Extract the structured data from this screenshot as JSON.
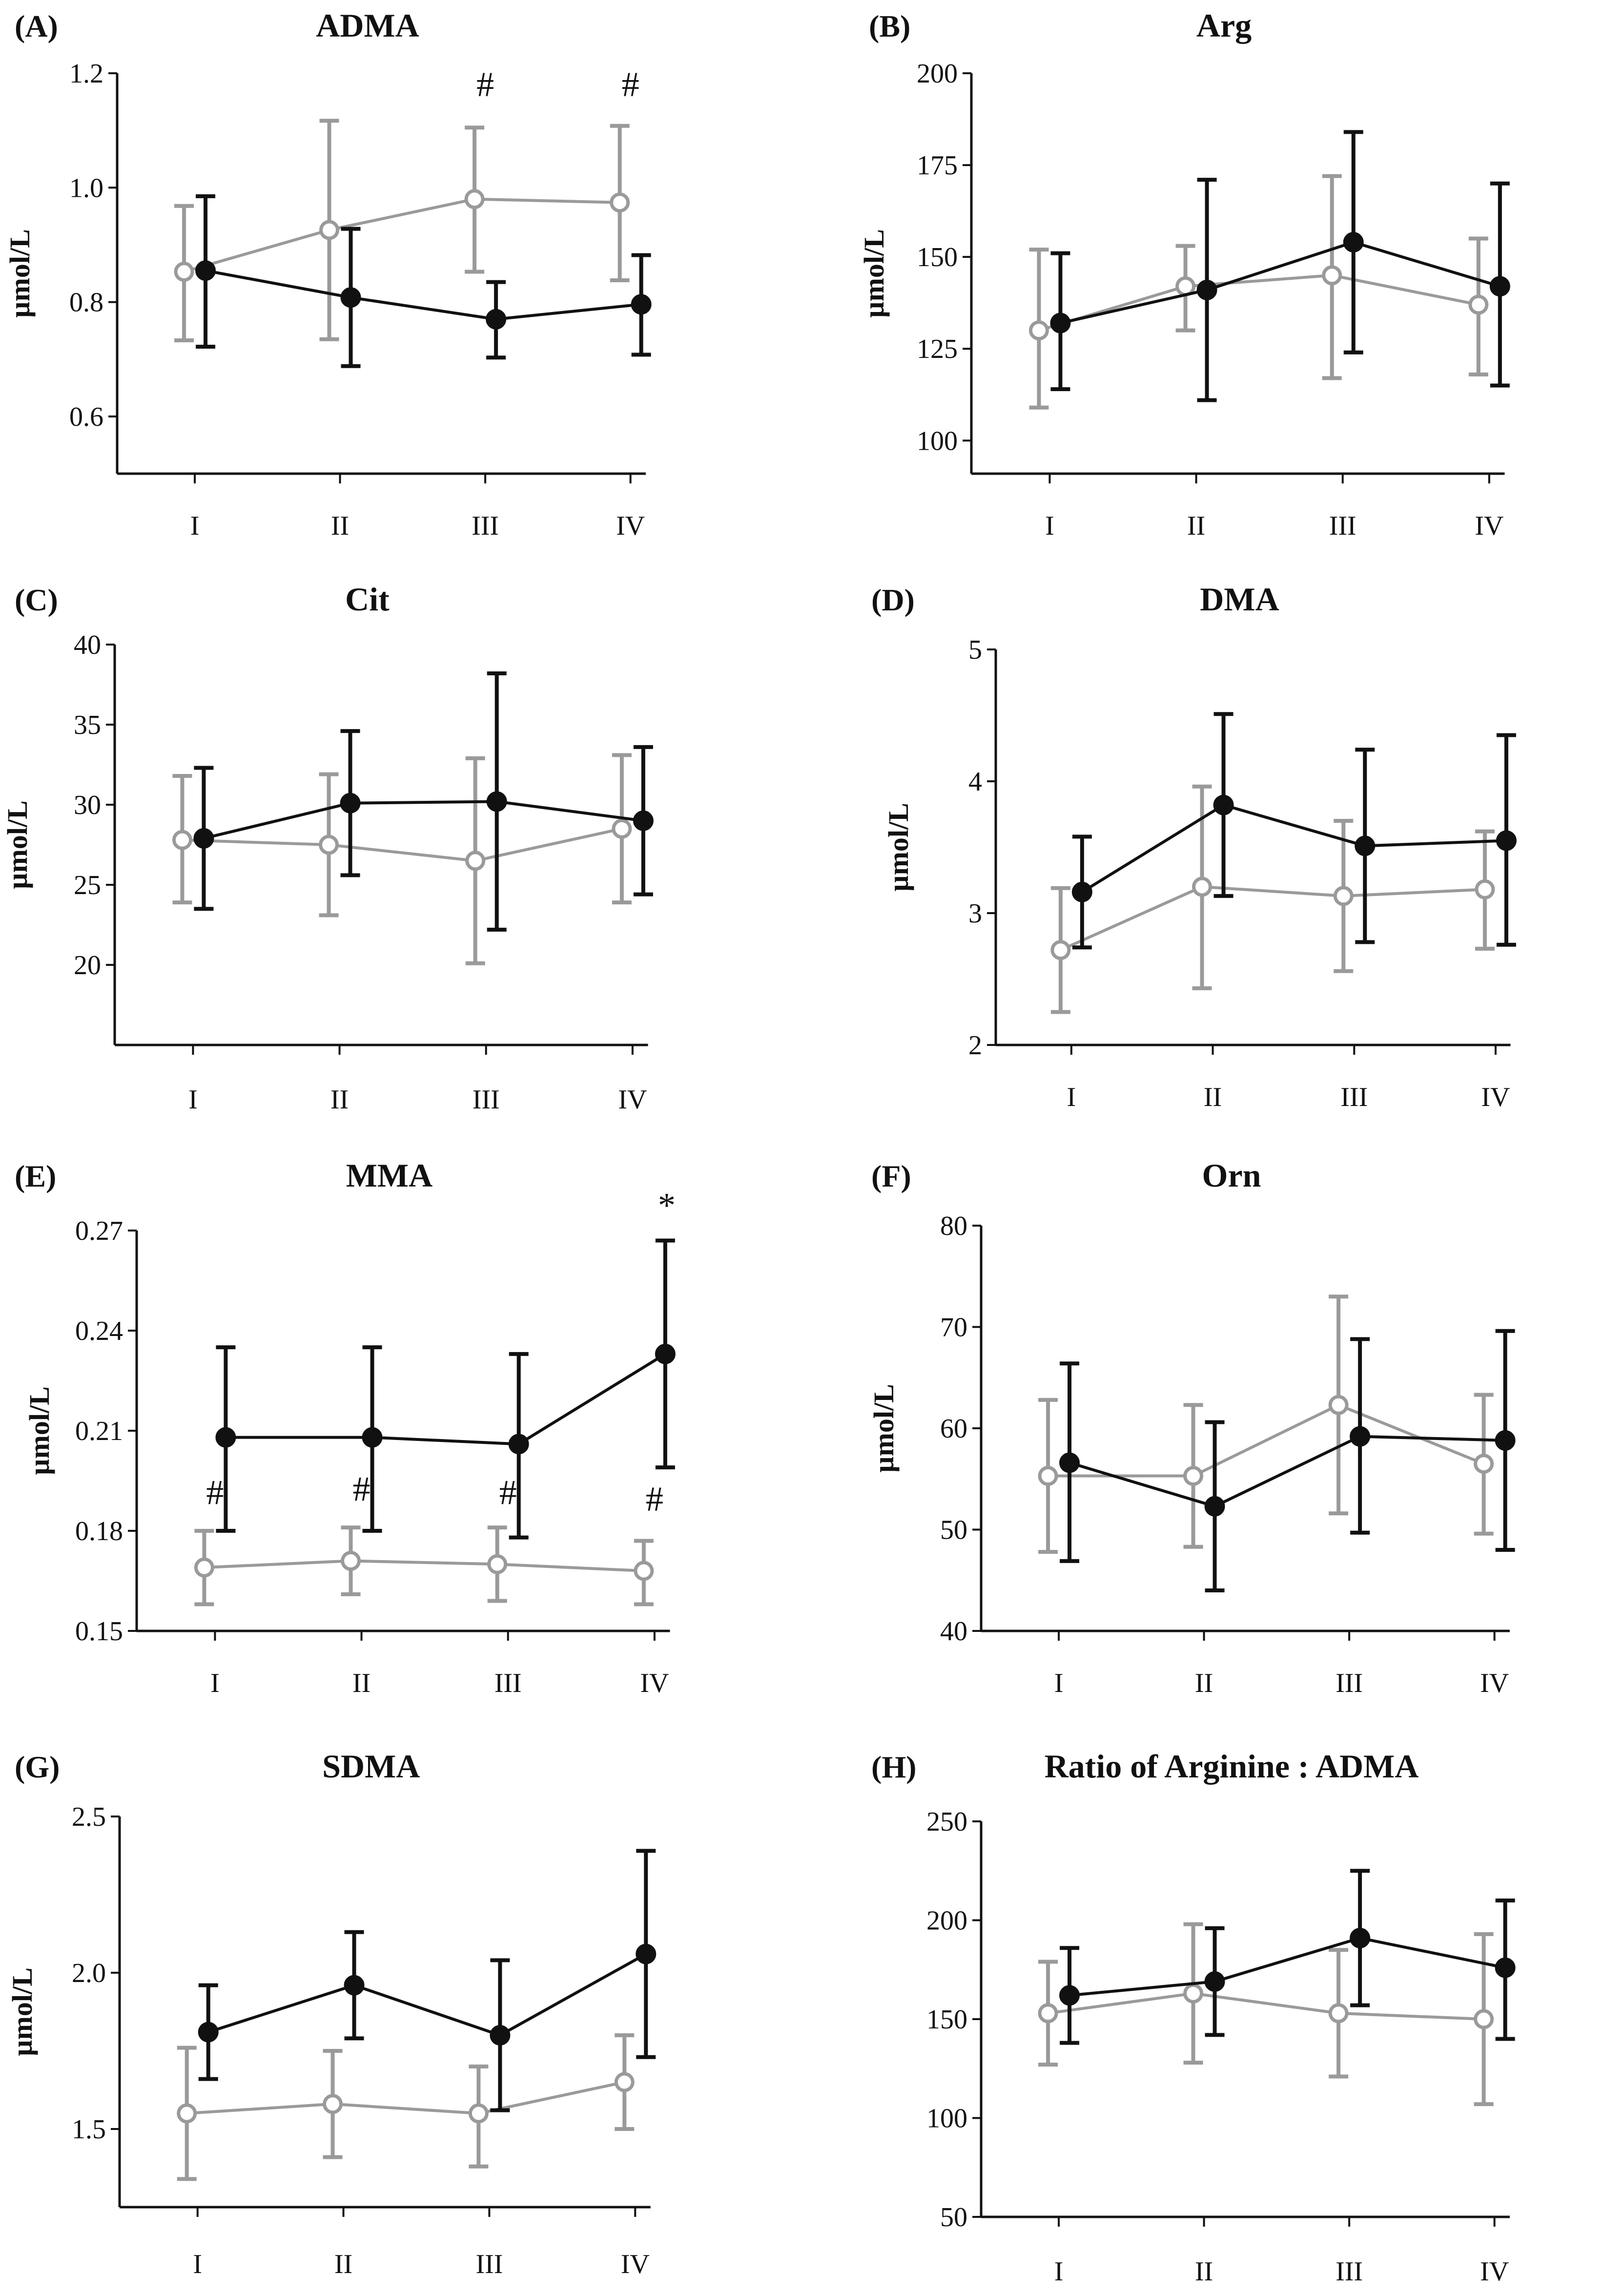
{
  "figure": {
    "group_colors": {
      "black": "#111111",
      "gray": "#9a9a9a"
    },
    "x_categories": [
      "I",
      "II",
      "III",
      "IV"
    ]
  },
  "chart_data": [
    {
      "type": "line",
      "panel_label": "(A)",
      "title": "ADMA",
      "ylabel": "µmol/L",
      "ylim": [
        0.5,
        1.2
      ],
      "yticks": [
        {
          "value": 0.6,
          "label": "0.6"
        },
        {
          "value": 0.8,
          "label": "0.8"
        },
        {
          "value": 1.0,
          "label": "1.0"
        },
        {
          "value": 1.2,
          "label": "1.2"
        }
      ],
      "categories": [
        "I",
        "II",
        "III",
        "IV"
      ],
      "series": [
        {
          "name": "black",
          "color": "#111111",
          "values": [
            0.855,
            0.808,
            0.77,
            0.796
          ],
          "err_low": [
            0.722,
            0.688,
            0.703,
            0.708
          ],
          "err_high": [
            0.985,
            0.928,
            0.835,
            0.882
          ]
        },
        {
          "name": "gray",
          "color": "#9a9a9a",
          "values": [
            0.853,
            0.926,
            0.98,
            0.974
          ],
          "err_low": [
            0.733,
            0.735,
            0.853,
            0.838
          ],
          "err_high": [
            0.968,
            1.117,
            1.105,
            1.108
          ]
        }
      ],
      "annotations": [
        {
          "category": "III",
          "text": "#",
          "y": 1.16
        },
        {
          "category": "IV",
          "text": "#",
          "y": 1.16
        }
      ]
    },
    {
      "type": "line",
      "panel_label": "(B)",
      "title": "Arg",
      "ylabel": "µmol/L",
      "ylim": [
        91,
        200
      ],
      "yticks": [
        {
          "value": 100,
          "label": "100"
        },
        {
          "value": 125,
          "label": "125"
        },
        {
          "value": 150,
          "label": "150"
        },
        {
          "value": 175,
          "label": "175"
        },
        {
          "value": 200,
          "label": "200"
        }
      ],
      "categories": [
        "I",
        "II",
        "III",
        "IV"
      ],
      "series": [
        {
          "name": "black",
          "color": "#111111",
          "values": [
            132,
            141,
            154,
            142
          ],
          "err_low": [
            114,
            111,
            124,
            115
          ],
          "err_high": [
            151,
            171,
            184,
            170
          ]
        },
        {
          "name": "gray",
          "color": "#9a9a9a",
          "values": [
            130,
            142,
            145,
            137
          ],
          "err_low": [
            109,
            130,
            117,
            118
          ],
          "err_high": [
            152,
            153,
            172,
            155
          ]
        }
      ],
      "annotations": []
    },
    {
      "type": "line",
      "panel_label": "(C)",
      "title": "Cit",
      "ylabel": "µmol/L",
      "ylim": [
        15,
        40
      ],
      "yticks": [
        {
          "value": 20,
          "label": "20"
        },
        {
          "value": 25,
          "label": "25"
        },
        {
          "value": 30,
          "label": "30"
        },
        {
          "value": 35,
          "label": "35"
        },
        {
          "value": 40,
          "label": "40"
        }
      ],
      "categories": [
        "I",
        "II",
        "III",
        "IV"
      ],
      "series": [
        {
          "name": "black",
          "color": "#111111",
          "values": [
            27.9,
            30.1,
            30.2,
            29.0
          ],
          "err_low": [
            23.5,
            25.6,
            22.2,
            24.4
          ],
          "err_high": [
            32.3,
            34.6,
            38.2,
            33.6
          ]
        },
        {
          "name": "gray",
          "color": "#9a9a9a",
          "values": [
            27.8,
            27.5,
            26.5,
            28.5
          ],
          "err_low": [
            23.9,
            23.1,
            20.1,
            23.9
          ],
          "err_high": [
            31.8,
            31.9,
            32.9,
            33.1
          ]
        }
      ],
      "annotations": []
    },
    {
      "type": "line",
      "panel_label": "(D)",
      "title": "DMA",
      "ylabel": "µmol/L",
      "ylim": [
        2,
        5
      ],
      "yticks": [
        {
          "value": 2,
          "label": "2"
        },
        {
          "value": 3,
          "label": "3"
        },
        {
          "value": 4,
          "label": "4"
        },
        {
          "value": 5,
          "label": "5"
        }
      ],
      "categories": [
        "I",
        "II",
        "III",
        "IV"
      ],
      "series": [
        {
          "name": "black",
          "color": "#111111",
          "values": [
            3.16,
            3.82,
            3.51,
            3.55
          ],
          "err_low": [
            2.74,
            3.13,
            2.78,
            2.76
          ],
          "err_high": [
            3.58,
            4.51,
            4.24,
            4.35
          ]
        },
        {
          "name": "gray",
          "color": "#9a9a9a",
          "values": [
            2.72,
            3.2,
            3.13,
            3.18
          ],
          "err_low": [
            2.25,
            2.43,
            2.56,
            2.73
          ],
          "err_high": [
            3.19,
            3.96,
            3.7,
            3.62
          ]
        }
      ],
      "annotations": []
    },
    {
      "type": "line",
      "panel_label": "(E)",
      "title": "MMA",
      "ylabel": "µmol/L",
      "ylim": [
        0.15,
        0.27
      ],
      "yticks": [
        {
          "value": 0.15,
          "label": "0.15"
        },
        {
          "value": 0.18,
          "label": "0.18"
        },
        {
          "value": 0.21,
          "label": "0.21"
        },
        {
          "value": 0.24,
          "label": "0.24"
        },
        {
          "value": 0.27,
          "label": "0.27"
        }
      ],
      "categories": [
        "I",
        "II",
        "III",
        "IV"
      ],
      "series": [
        {
          "name": "black",
          "color": "#111111",
          "values": [
            0.208,
            0.208,
            0.206,
            0.233
          ],
          "err_low": [
            0.18,
            0.18,
            0.178,
            0.199
          ],
          "err_high": [
            0.235,
            0.235,
            0.233,
            0.267
          ]
        },
        {
          "name": "gray",
          "color": "#9a9a9a",
          "values": [
            0.169,
            0.171,
            0.17,
            0.168
          ],
          "err_low": [
            0.158,
            0.161,
            0.159,
            0.158
          ],
          "err_high": [
            0.18,
            0.181,
            0.181,
            0.177
          ]
        }
      ],
      "annotations": [
        {
          "category": "I",
          "text": "#",
          "y": 0.188
        },
        {
          "category": "II",
          "text": "#",
          "y": 0.189
        },
        {
          "category": "III",
          "text": "#",
          "y": 0.188
        },
        {
          "category": "IV",
          "text": "#",
          "y": 0.186
        },
        {
          "category": "IV",
          "text": "*",
          "y": 0.274
        }
      ]
    },
    {
      "type": "line",
      "panel_label": "(F)",
      "title": "Orn",
      "ylabel": "µmol/L",
      "ylim": [
        40,
        80
      ],
      "yticks": [
        {
          "value": 40,
          "label": "40"
        },
        {
          "value": 50,
          "label": "50"
        },
        {
          "value": 60,
          "label": "60"
        },
        {
          "value": 70,
          "label": "70"
        },
        {
          "value": 80,
          "label": "80"
        }
      ],
      "categories": [
        "I",
        "II",
        "III",
        "IV"
      ],
      "series": [
        {
          "name": "black",
          "color": "#111111",
          "values": [
            56.6,
            52.3,
            59.2,
            58.8
          ],
          "err_low": [
            46.9,
            44.0,
            49.7,
            48.0
          ],
          "err_high": [
            66.4,
            60.6,
            68.8,
            69.6
          ]
        },
        {
          "name": "gray",
          "color": "#9a9a9a",
          "values": [
            55.3,
            55.3,
            62.3,
            56.5
          ],
          "err_low": [
            47.8,
            48.3,
            51.6,
            49.6
          ],
          "err_high": [
            62.8,
            62.3,
            73.0,
            63.3
          ]
        }
      ],
      "annotations": []
    },
    {
      "type": "line",
      "panel_label": "(G)",
      "title": "SDMA",
      "ylabel": "µmol/L",
      "ylim": [
        1.25,
        2.5
      ],
      "yticks": [
        {
          "value": 1.5,
          "label": "1.5"
        },
        {
          "value": 2.0,
          "label": "2.0"
        },
        {
          "value": 2.5,
          "label": "2.5"
        }
      ],
      "categories": [
        "I",
        "II",
        "III",
        "IV"
      ],
      "series": [
        {
          "name": "black",
          "color": "#111111",
          "values": [
            1.81,
            1.96,
            1.8,
            2.06
          ],
          "err_low": [
            1.66,
            1.79,
            1.56,
            1.73
          ],
          "err_high": [
            1.96,
            2.13,
            2.04,
            2.39
          ]
        },
        {
          "name": "gray",
          "color": "#9a9a9a",
          "values": [
            1.55,
            1.58,
            1.55,
            1.65
          ],
          "err_low": [
            1.34,
            1.41,
            1.38,
            1.5
          ],
          "err_high": [
            1.76,
            1.75,
            1.7,
            1.8
          ]
        }
      ],
      "annotations": []
    },
    {
      "type": "line",
      "panel_label": "(H)",
      "title": "Ratio of Arginine : ADMA",
      "ylabel": "",
      "ylim": [
        50,
        250
      ],
      "yticks": [
        {
          "value": 50,
          "label": "50"
        },
        {
          "value": 100,
          "label": "100"
        },
        {
          "value": 150,
          "label": "150"
        },
        {
          "value": 200,
          "label": "200"
        },
        {
          "value": 250,
          "label": "250"
        }
      ],
      "categories": [
        "I",
        "II",
        "III",
        "IV"
      ],
      "series": [
        {
          "name": "black",
          "color": "#111111",
          "values": [
            162,
            169,
            191,
            176
          ],
          "err_low": [
            138,
            142,
            157,
            140
          ],
          "err_high": [
            186,
            196,
            225,
            210
          ]
        },
        {
          "name": "gray",
          "color": "#9a9a9a",
          "values": [
            153,
            163,
            153,
            150
          ],
          "err_low": [
            127,
            128,
            121,
            107
          ],
          "err_high": [
            179,
            198,
            185,
            193
          ]
        }
      ],
      "annotations": []
    }
  ]
}
